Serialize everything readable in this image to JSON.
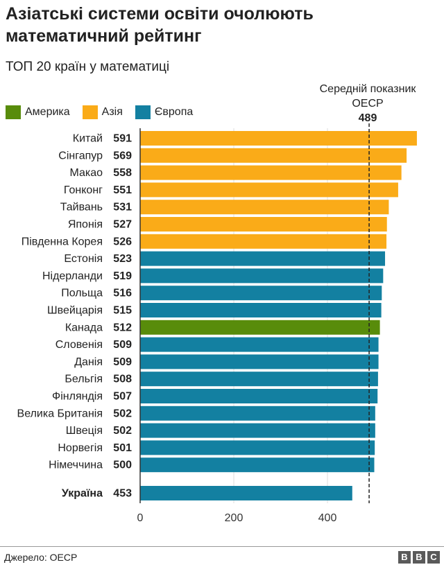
{
  "header": {
    "title": "Азіатські системи освіти очолюють математичний рейтинг",
    "subtitle": "ТОП 20 країн у математиці"
  },
  "legend": [
    {
      "label": "Америка",
      "color": "#588c0b"
    },
    {
      "label": "Азія",
      "color": "#faab18"
    },
    {
      "label": "Європа",
      "color": "#1380a1"
    }
  ],
  "reference": {
    "label_line1": "Середній показник",
    "label_line2": "OECP",
    "value": 489
  },
  "chart_data": {
    "type": "bar",
    "orientation": "horizontal",
    "categories": [
      "Китай",
      "Сінгапур",
      "Макао",
      "Гонконг",
      "Тайвань",
      "Японія",
      "Південна Корея",
      "Естонія",
      "Нідерланди",
      "Польща",
      "Швейцарія",
      "Канада",
      "Словенія",
      "Данія",
      "Бельгія",
      "Фінляндія",
      "Велика Британія",
      "Швеція",
      "Норвегія",
      "Німеччина",
      "Україна"
    ],
    "values": [
      591,
      569,
      558,
      551,
      531,
      527,
      526,
      523,
      519,
      516,
      515,
      512,
      509,
      509,
      508,
      507,
      502,
      502,
      501,
      500,
      453
    ],
    "groups": [
      "Азія",
      "Азія",
      "Азія",
      "Азія",
      "Азія",
      "Азія",
      "Азія",
      "Європа",
      "Європа",
      "Європа",
      "Європа",
      "Америка",
      "Європа",
      "Європа",
      "Європа",
      "Європа",
      "Європа",
      "Європа",
      "Європа",
      "Європа",
      "Європа"
    ],
    "highlight": "Україна",
    "x_ticks": [
      0,
      200,
      400
    ],
    "xlim": [
      0,
      600
    ],
    "grid": true,
    "reference_line": 489
  },
  "footer": {
    "source": "Джерело: OECP",
    "logo": [
      "B",
      "B",
      "C"
    ]
  }
}
